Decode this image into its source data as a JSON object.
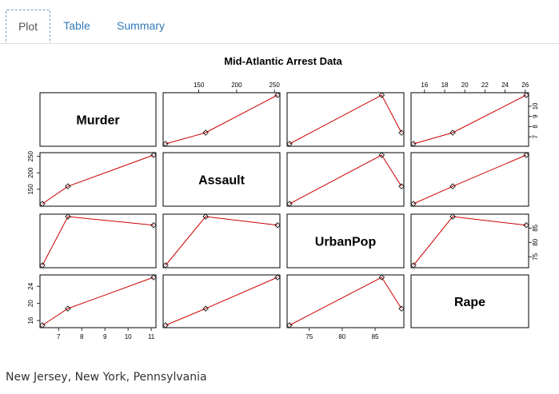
{
  "tabs": [
    {
      "label": "Plot",
      "active": true
    },
    {
      "label": "Table",
      "active": false
    },
    {
      "label": "Summary",
      "active": false
    }
  ],
  "caption": "New Jersey, New York, Pennsylvania",
  "chart_data": {
    "type": "scatter-matrix",
    "title": "Mid-Atlantic Arrest Data",
    "variables": [
      "Murder",
      "Assault",
      "UrbanPop",
      "Rape"
    ],
    "observations": [
      {
        "Murder": 7.4,
        "Assault": 159,
        "UrbanPop": 89,
        "Rape": 18.8
      },
      {
        "Murder": 11.1,
        "Assault": 254,
        "UrbanPop": 86,
        "Rape": 26.1
      },
      {
        "Murder": 6.3,
        "Assault": 106,
        "UrbanPop": 72,
        "Rape": 14.9
      }
    ],
    "ranges": {
      "Murder": [
        6.3,
        11.1
      ],
      "Assault": [
        106,
        254
      ],
      "UrbanPop": [
        72,
        89
      ],
      "Rape": [
        14.9,
        26.1
      ]
    },
    "ticks": {
      "Murder": [
        "7",
        "8",
        "9",
        "10",
        "11"
      ],
      "Assault": [
        "150",
        "200",
        "250"
      ],
      "UrbanPop": [
        "75",
        "80",
        "85"
      ],
      "Rape": [
        "16",
        "18",
        "20",
        "22",
        "24",
        "26"
      ]
    },
    "tick_labels": {
      "bottom_col0": [
        "7",
        "8",
        "9",
        "10",
        "11"
      ],
      "top_col1": [
        "150",
        "200",
        "250"
      ],
      "bottom_col2": [
        "75",
        "80",
        "85"
      ],
      "top_col3": [
        "16",
        "18",
        "20",
        "22",
        "24",
        "26"
      ],
      "left_row1": [
        "150",
        "200",
        "250"
      ],
      "left_row3": [
        "16",
        "20",
        "24"
      ],
      "right_row0": [
        "7",
        "8",
        "9",
        "10"
      ],
      "right_row2": [
        "75",
        "80",
        "85"
      ]
    },
    "point_marker": "diamond",
    "line_color": "#cc0000",
    "marker_color": "#000000",
    "grid": false
  }
}
